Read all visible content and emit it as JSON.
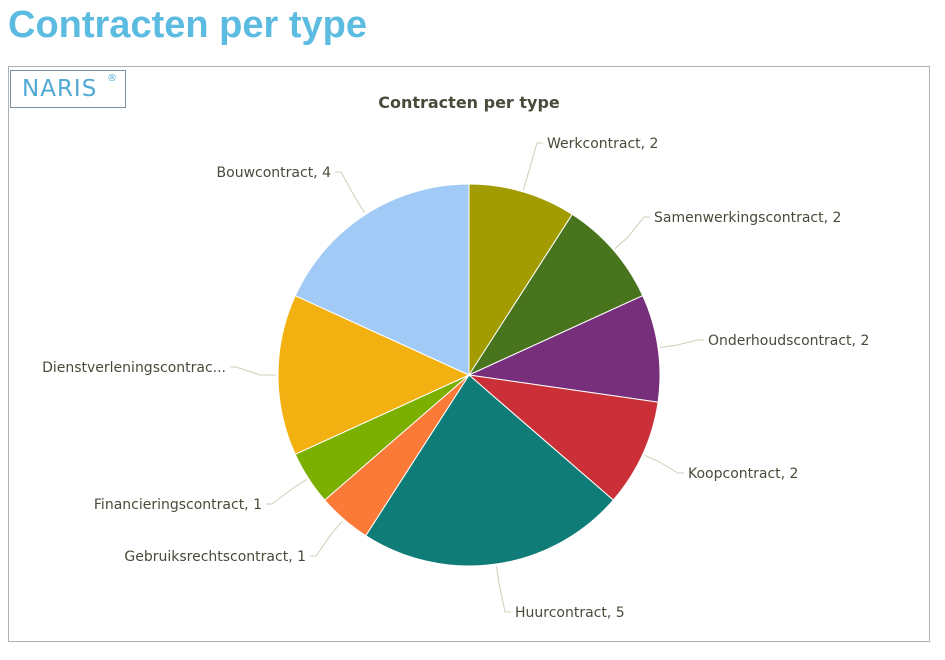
{
  "page": {
    "title": "Contracten per type"
  },
  "logo": {
    "text": "NARIS",
    "mark": "®"
  },
  "chart_data": {
    "type": "pie",
    "title": "Contracten per type",
    "slices": [
      {
        "label": "Werkcontract, 2",
        "name": "Werkcontract",
        "value": 2,
        "color": "#a39c00"
      },
      {
        "label": "Samenwerkingscontract, 2",
        "name": "Samenwerkingscontract",
        "value": 2,
        "color": "#47741c"
      },
      {
        "label": "Onderhoudscontract, 2",
        "name": "Onderhoudscontract",
        "value": 2,
        "color": "#772f7c"
      },
      {
        "label": "Koopcontract, 2",
        "name": "Koopcontract",
        "value": 2,
        "color": "#cb3038"
      },
      {
        "label": "Huurcontract, 5",
        "name": "Huurcontract",
        "value": 5,
        "color": "#0f7c78"
      },
      {
        "label": "Gebruiksrechtscontract, 1",
        "name": "Gebruiksrechtscontract",
        "value": 1,
        "color": "#fb7a38"
      },
      {
        "label": "Financieringscontract, 1",
        "name": "Financieringscontract",
        "value": 1,
        "color": "#7bb000"
      },
      {
        "label": "Dienstverleningscontrac...",
        "name": "Dienstverleningscontract",
        "value": 3,
        "color": "#f2b011"
      },
      {
        "label": "Bouwcontract, 4",
        "name": "Bouwcontract",
        "value": 4,
        "color": "#a1cbf6"
      }
    ]
  }
}
